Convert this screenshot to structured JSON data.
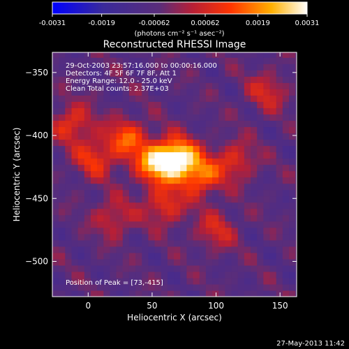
{
  "chart_data": {
    "type": "heatmap",
    "title": "Reconstructed RHESSI Image",
    "xlabel": "Heliocentric X (arcsec)",
    "ylabel": "Heliocentric Y (arcsec)",
    "xlim": [
      -28,
      163
    ],
    "ylim": [
      -528,
      -334
    ],
    "x_ticks": [
      0,
      50,
      100,
      150
    ],
    "y_ticks": [
      -350,
      -400,
      -450,
      -500
    ],
    "colorbar": {
      "range": [
        -0.0031,
        0.0031
      ],
      "ticks": [
        "-0.0031",
        "-0.0019",
        "-0.00062",
        "0.00062",
        "0.0019",
        "0.0031"
      ],
      "unit_label": "(photons cm⁻² s⁻¹ asec⁻²)",
      "colors": [
        "#0000ff",
        "#5a2d9a",
        "#b71f36",
        "#ff3500",
        "#ffb000",
        "#ffffff"
      ]
    },
    "annotations": [
      "29-Oct-2003 23:57:16.000  to 00:00:16.000",
      "Detectors: 4F 5F 6F 7F 8F, Att 1",
      "Energy Range: 12.0 - 25.0 keV",
      "Clean    Total counts: 2.37E+03"
    ],
    "peak_label": "Position of Peak = [73,-415]",
    "peak": [
      73,
      -415
    ],
    "sources": [
      {
        "x": 70,
        "y": -418,
        "amp": 1.0
      },
      {
        "x": 52,
        "y": -422,
        "amp": 0.75
      },
      {
        "x": 88,
        "y": -432,
        "amp": 0.6
      },
      {
        "x": 30,
        "y": -402,
        "amp": 0.55
      },
      {
        "x": 5,
        "y": -418,
        "amp": 0.45
      },
      {
        "x": 115,
        "y": -420,
        "amp": 0.4
      },
      {
        "x": 60,
        "y": -455,
        "amp": 0.45
      },
      {
        "x": -12,
        "y": -390,
        "amp": 0.45
      },
      {
        "x": 140,
        "y": -365,
        "amp": 0.35
      },
      {
        "x": 100,
        "y": -475,
        "amp": 0.35
      },
      {
        "x": 20,
        "y": -465,
        "amp": 0.35
      }
    ]
  },
  "timestamp": "27-May-2013 11:42"
}
